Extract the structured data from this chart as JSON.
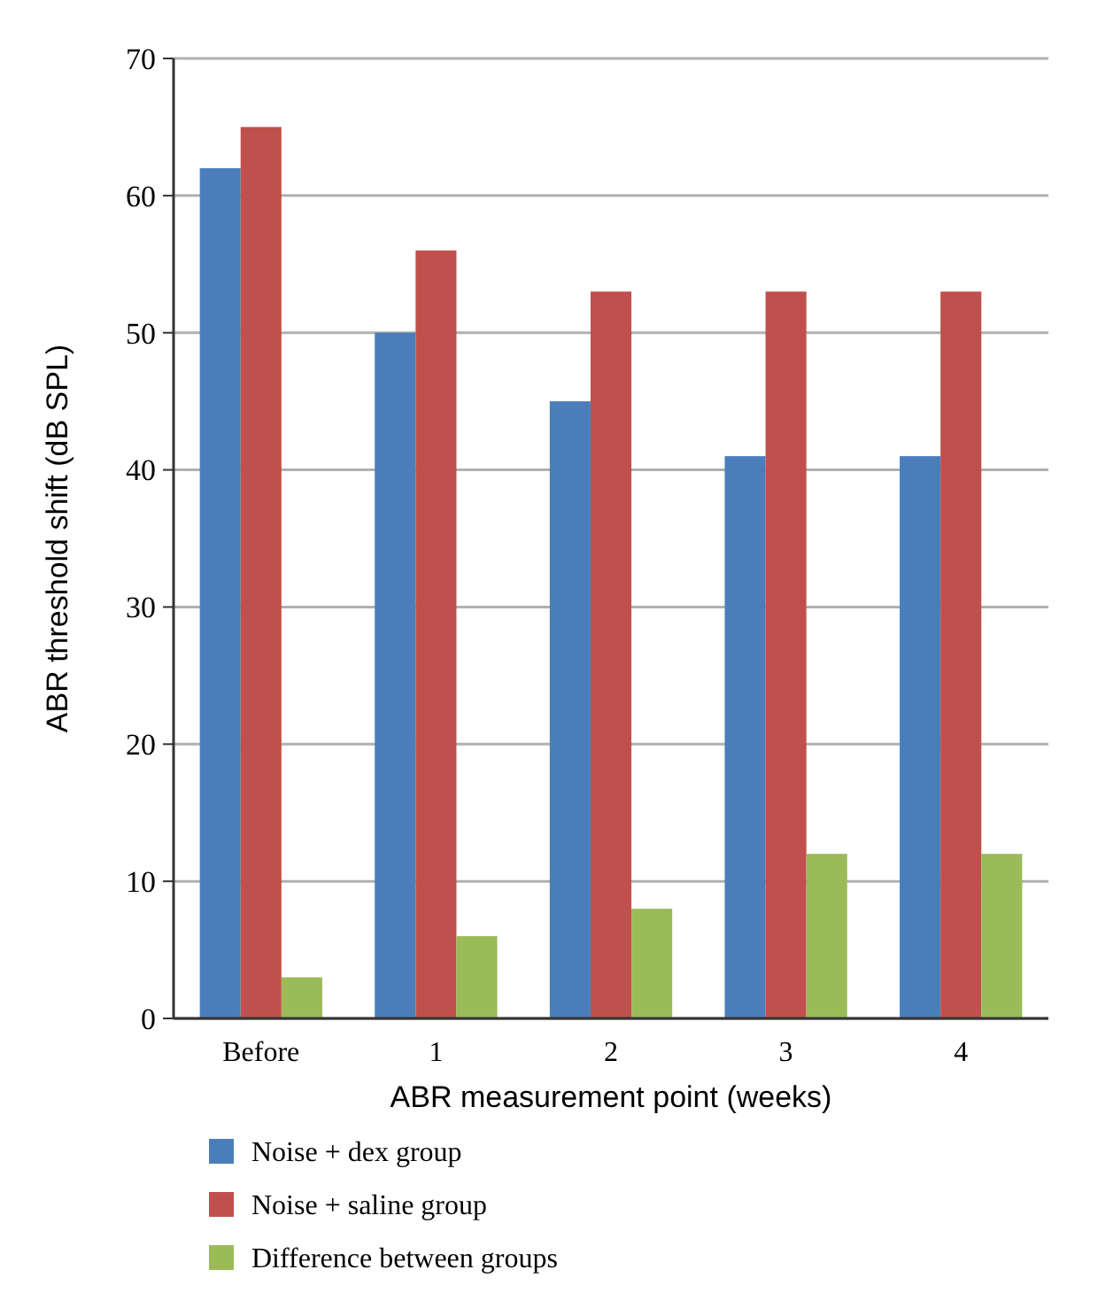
{
  "chart_data": {
    "type": "bar",
    "xlabel": "ABR measurement point (weeks)",
    "ylabel": "ABR threshold shift (dB SPL)",
    "categories": [
      "Before",
      "1",
      "2",
      "3",
      "4"
    ],
    "series": [
      {
        "name": "Noise + dex group",
        "color": "#4a7ebb",
        "values": [
          62,
          50,
          45,
          41,
          41
        ]
      },
      {
        "name": "Noise + saline group",
        "color": "#c0504d",
        "values": [
          65,
          56,
          53,
          53,
          53
        ]
      },
      {
        "name": "Difference between groups",
        "color": "#9bbb59",
        "values": [
          3,
          6,
          8,
          12,
          12
        ]
      }
    ],
    "ylim": [
      0,
      70
    ],
    "yticks": [
      0,
      10,
      20,
      30,
      40,
      50,
      60,
      70
    ],
    "grid": "y",
    "legend": "bottom"
  }
}
